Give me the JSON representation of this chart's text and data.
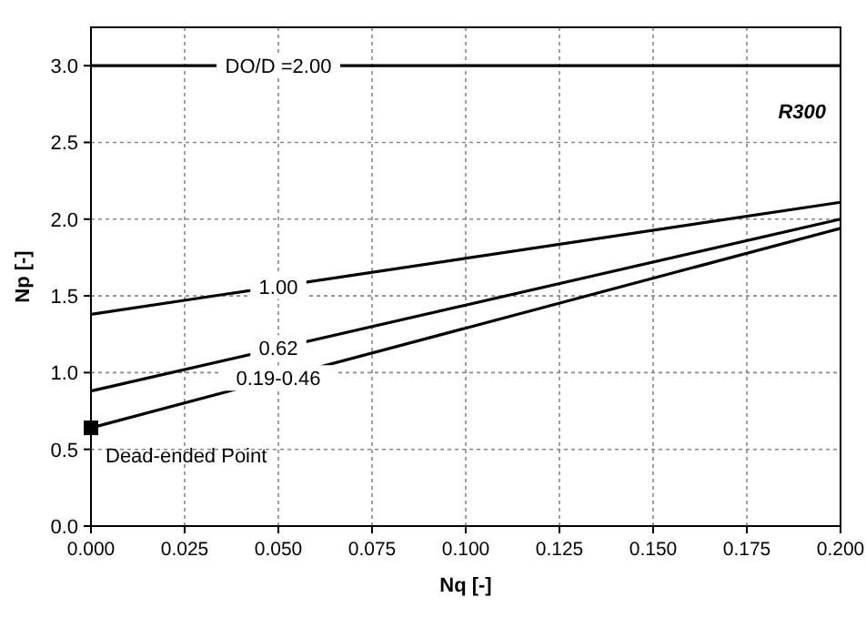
{
  "chart_data": {
    "type": "line",
    "xlabel": "Nq [-]",
    "ylabel": "Np [-]",
    "xlim": [
      0,
      0.2
    ],
    "ylim": [
      0,
      3.25
    ],
    "xticks": [
      {
        "value": 0,
        "label": "0.000"
      },
      {
        "value": 0.025,
        "label": "0.025"
      },
      {
        "value": 0.05,
        "label": "0.050"
      },
      {
        "value": 0.075,
        "label": "0.075"
      },
      {
        "value": 0.1,
        "label": "0.100"
      },
      {
        "value": 0.125,
        "label": "0.125"
      },
      {
        "value": 0.15,
        "label": "0.150"
      },
      {
        "value": 0.175,
        "label": "0.175"
      },
      {
        "value": 0.2,
        "label": "0.200"
      }
    ],
    "yticks": [
      {
        "value": 0,
        "label": "0.0"
      },
      {
        "value": 0.5,
        "label": "0.5"
      },
      {
        "value": 1,
        "label": "1.0"
      },
      {
        "value": 1.5,
        "label": "1.5"
      },
      {
        "value": 2,
        "label": "2.0"
      },
      {
        "value": 2.5,
        "label": "2.5"
      },
      {
        "value": 3,
        "label": "3.0"
      }
    ],
    "grid": true,
    "marker": "none",
    "line_style": "solid",
    "x": [
      0,
      0.2
    ],
    "series": [
      {
        "name": "DO/D =2.00",
        "color": "#000000",
        "values": [
          3.0,
          3.0
        ]
      },
      {
        "name": "1.00",
        "color": "#000000",
        "values": [
          1.38,
          2.11
        ]
      },
      {
        "name": "0.62",
        "color": "#000000",
        "values": [
          0.88,
          2.0
        ]
      },
      {
        "name": "0.19-0.46",
        "color": "#000000",
        "values": [
          0.64,
          1.94
        ]
      },
      {
        "type": "scatter",
        "marker": "square",
        "color": "#000000",
        "x": [
          0
        ],
        "values": [
          0.64
        ]
      }
    ],
    "annotations": [
      "R300",
      {
        "text": "Dead-ended Point",
        "x": 0,
        "y": 0.64
      }
    ]
  }
}
